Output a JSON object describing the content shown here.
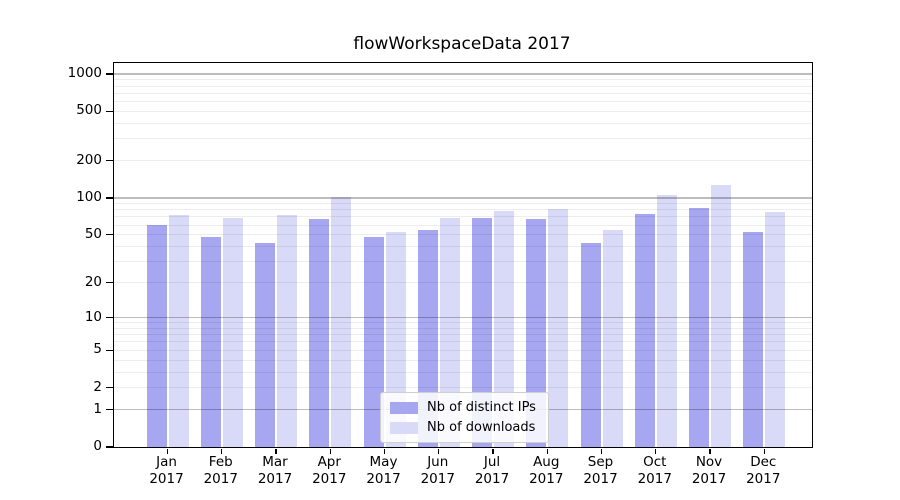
{
  "chart_data": {
    "type": "bar",
    "title": "flowWorkspaceData 2017",
    "categories": [
      "Jan 2017",
      "Feb 2017",
      "Mar 2017",
      "Apr 2017",
      "May 2017",
      "Jun 2017",
      "Jul 2017",
      "Aug 2017",
      "Sep 2017",
      "Oct 2017",
      "Nov 2017",
      "Dec 2017"
    ],
    "month_labels": [
      "Jan",
      "Feb",
      "Mar",
      "Apr",
      "May",
      "Jun",
      "Jul",
      "Aug",
      "Sep",
      "Oct",
      "Nov",
      "Dec"
    ],
    "year_label": "2017",
    "series": [
      {
        "name": "Nb of distinct IPs",
        "color": "#a6a7f0",
        "values": [
          60,
          48,
          43,
          67,
          48,
          55,
          69,
          67,
          43,
          74,
          83,
          53
        ]
      },
      {
        "name": "Nb of downloads",
        "color": "#d9daf8",
        "values": [
          72,
          68,
          72,
          101,
          53,
          69,
          78,
          81,
          55,
          105,
          126,
          77
        ]
      }
    ],
    "xlabel": "",
    "ylabel": "",
    "y_axis": {
      "scale": "log10(1+x)",
      "tick_values": [
        0,
        1,
        2,
        5,
        10,
        20,
        50,
        100,
        200,
        500,
        1000
      ],
      "tick_labels": [
        "0",
        "1",
        "2",
        "5",
        "10",
        "20",
        "50",
        "100",
        "200",
        "500",
        "1000"
      ],
      "major_gridlines": [
        1,
        10,
        100,
        1000
      ],
      "ylim": [
        0,
        1100
      ]
    },
    "grid": "horizontal major + log minor gridlines, drawn over bars",
    "legend": {
      "position": "inside-bottom-center",
      "entries": [
        "Nb of distinct IPs",
        "Nb of downloads"
      ]
    }
  }
}
